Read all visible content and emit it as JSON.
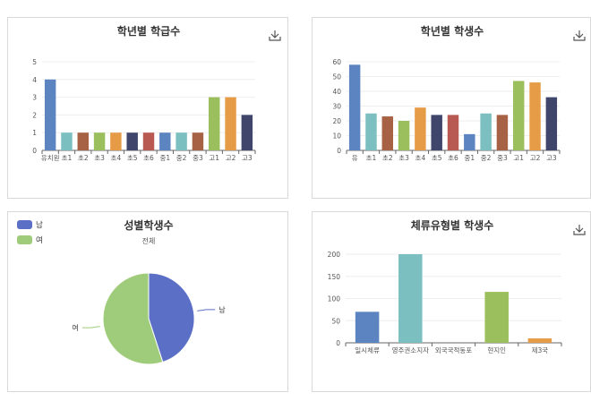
{
  "charts": [
    {
      "id": "grade-classes",
      "type": "bar",
      "title": "학년별 학급수",
      "categories": [
        "유치원",
        "초1",
        "초2",
        "초3",
        "초4",
        "초5",
        "초6",
        "중1",
        "중2",
        "중3",
        "고1",
        "고2",
        "고3"
      ],
      "values": [
        4,
        1,
        1,
        1,
        1,
        1,
        1,
        1,
        1,
        1,
        3,
        3,
        2
      ],
      "ylim": [
        0,
        5
      ],
      "yticks": [
        "0",
        "1",
        "2",
        "3",
        "4",
        "5"
      ],
      "grid": true,
      "download_icon": "download-icon"
    },
    {
      "id": "grade-students",
      "type": "bar",
      "title": "학년별 학생수",
      "categories": [
        "유",
        "초1",
        "초2",
        "초3",
        "초4",
        "초5",
        "초6",
        "중1",
        "중2",
        "중3",
        "고1",
        "고2",
        "고3"
      ],
      "values": [
        58,
        25,
        23,
        20,
        29,
        24,
        24,
        11,
        25,
        24,
        47,
        46,
        36
      ],
      "ylim": [
        0,
        60
      ],
      "yticks": [
        "0",
        "10",
        "20",
        "30",
        "40",
        "50",
        "60"
      ],
      "grid": true,
      "download_icon": "download-icon"
    },
    {
      "id": "gender-students",
      "type": "pie",
      "title": "성별학생수",
      "subtitle": "전체",
      "legend_position": "top-left",
      "slices": [
        {
          "label": "남",
          "value": 45
        },
        {
          "label": "여",
          "value": 55
        }
      ]
    },
    {
      "id": "residence-type-students",
      "type": "bar",
      "title": "체류유형별 학생수",
      "categories": [
        "일시체류",
        "영주권소지자",
        "외국국적동포",
        "현지인",
        "제3국"
      ],
      "values": [
        70,
        200,
        0,
        115,
        10
      ],
      "ylim": [
        0,
        200
      ],
      "yticks": [
        "0",
        "50",
        "100",
        "150",
        "200"
      ],
      "grid": true,
      "download_icon": "download-icon"
    }
  ],
  "colors": {
    "palette13": [
      "#5b84c1",
      "#7bbfc0",
      "#a76245",
      "#9cbf5e",
      "#e69c47",
      "#3f456b",
      "#b85a52",
      "#5b84c1",
      "#7bbfc0",
      "#a76245",
      "#9cbf5e",
      "#e69c47",
      "#3f456b"
    ],
    "palette5": [
      "#5b84c1",
      "#7bbfc0",
      "#a76245",
      "#9cbf5e",
      "#e69c47"
    ],
    "pie": [
      "#5b6fc6",
      "#9fcc7a"
    ]
  }
}
